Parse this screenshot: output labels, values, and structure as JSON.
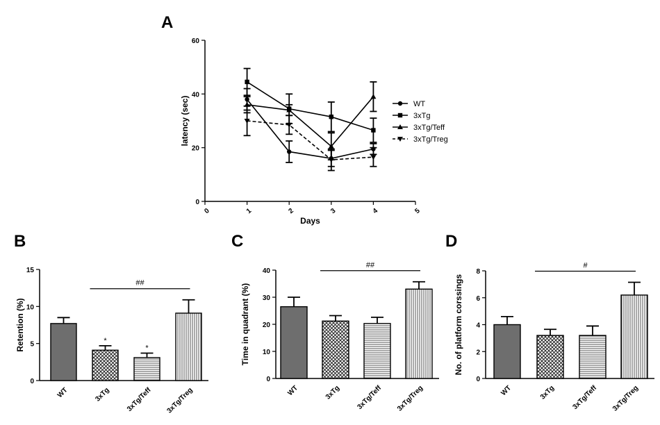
{
  "chart_data": [
    {
      "panel": "A",
      "type": "line",
      "xlabel": "Days",
      "ylabel": "latency (sec)",
      "xlim": [
        0,
        5
      ],
      "ylim": [
        0,
        60
      ],
      "xticks": [
        "0",
        "1",
        "2",
        "3",
        "4",
        "5"
      ],
      "yticks": [
        "0",
        "20",
        "40",
        "60"
      ],
      "x": [
        1,
        2,
        3,
        4
      ],
      "legend_placement": "right",
      "series": [
        {
          "name": "WT",
          "marker": "circle",
          "dash": "solid",
          "values": [
            38,
            18.5,
            16,
            19.5
          ],
          "errors": [
            4,
            4,
            3,
            2
          ]
        },
        {
          "name": "3xTg",
          "marker": "square",
          "dash": "solid",
          "values": [
            44.5,
            34.5,
            31.5,
            26.5
          ],
          "errors": [
            5,
            5.5,
            5.5,
            4.5
          ]
        },
        {
          "name": "3xTg/Teff",
          "marker": "triangle-up",
          "dash": "solid",
          "values": [
            36,
            34,
            20.5,
            39
          ],
          "errors": [
            3,
            2,
            5,
            5.5
          ]
        },
        {
          "name": "3xTg/Treg",
          "marker": "triangle-down",
          "dash": "dashed",
          "values": [
            30,
            28.5,
            15.5,
            16.5
          ],
          "errors": [
            5.5,
            3.5,
            4,
            3.5
          ]
        }
      ]
    },
    {
      "panel": "B",
      "type": "bar",
      "ylabel": "Retention (%)",
      "ylim": [
        0,
        15
      ],
      "yticks": [
        "0",
        "5",
        "10",
        "15"
      ],
      "categories": [
        "WT",
        "3xTg",
        "3xTg/Teff",
        "3xTg/Treg"
      ],
      "values": [
        7.7,
        4.1,
        3.1,
        9.1
      ],
      "errors": [
        0.8,
        0.6,
        0.6,
        1.8
      ],
      "stars": [
        "",
        "*",
        "*",
        ""
      ],
      "significance": {
        "label": "##",
        "from": 1,
        "to": 3
      }
    },
    {
      "panel": "C",
      "type": "bar",
      "ylabel": "Time in quadrant (%)",
      "ylim": [
        0,
        40
      ],
      "yticks": [
        "0",
        "10",
        "20",
        "30",
        "40"
      ],
      "categories": [
        "WT",
        "3xTg",
        "3xTg/Teff",
        "3xTg/Treg"
      ],
      "values": [
        26.5,
        21.2,
        20.3,
        33
      ],
      "errors": [
        3.5,
        2,
        2.3,
        2.7
      ],
      "stars": [
        "",
        "",
        "",
        ""
      ],
      "significance": {
        "label": "##",
        "from": 1,
        "to": 3
      }
    },
    {
      "panel": "D",
      "type": "bar",
      "ylabel": "No. of platform corssings",
      "ylim": [
        0,
        8
      ],
      "yticks": [
        "0",
        "2",
        "4",
        "6",
        "8"
      ],
      "categories": [
        "WT",
        "3xTg",
        "3xTg/Teff",
        "3xTg/Treg"
      ],
      "values": [
        4,
        3.2,
        3.2,
        6.2
      ],
      "errors": [
        0.6,
        0.45,
        0.7,
        0.95
      ],
      "stars": [
        "",
        "",
        "",
        ""
      ],
      "significance": {
        "label": "#",
        "from": 1,
        "to": 3
      }
    }
  ],
  "bar_fills": [
    "solid-dark-gray",
    "crosshatch",
    "horizontal-stripes",
    "vertical-stripes"
  ],
  "colors": {
    "dark_gray": "#6e6e6e",
    "line": "#000000",
    "stripe_fill": "#ffffff"
  }
}
